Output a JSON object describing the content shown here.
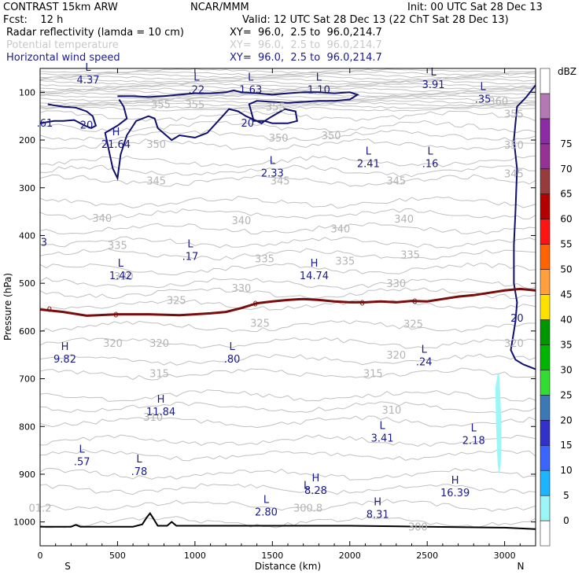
{
  "header": {
    "model": "CONTRAST 15km ARW",
    "center": "NCAR/MMM",
    "init": "Init: 00 UTC Sat 28 Dec 13",
    "fcst": "Fcst:    12 h",
    "valid": "Valid: 12 UTC Sat 28 Dec 13 (22 ChT Sat 28 Dec 13)",
    "field1": "Radar reflectivity (lamda = 10 cm)",
    "field1_xy": "XY=  96.0,  2.5 to  96.0,214.7",
    "field2": "Potential temperature",
    "field2_xy": "XY=  96.0,  2.5 to  96.0,214.7",
    "field3": "Horizontal wind speed",
    "field3_xy": "XY=  96.0,  2.5 to  96.0,214.7"
  },
  "colors": {
    "theta": "#c0c0c0",
    "wind": "#101070",
    "freezing": "#7a0c0c",
    "terrain": "#000000",
    "label": "#1a1a8c"
  },
  "chart_data": {
    "type": "contour",
    "xlabel": "Distance (km)",
    "ylabel": "Pressure (hPa)",
    "xlim": [
      0,
      3200
    ],
    "ylim": [
      1050,
      50
    ],
    "x_ticks": [
      "0",
      "500",
      "1000",
      "1500",
      "2000",
      "2500",
      "3000"
    ],
    "x_tick_values": [
      0,
      500,
      1000,
      1500,
      2000,
      2500,
      3000
    ],
    "y_ticks": [
      "100",
      "200",
      "300",
      "400",
      "500",
      "600",
      "700",
      "800",
      "900",
      "1000"
    ],
    "y_tick_values": [
      100,
      200,
      300,
      400,
      500,
      600,
      700,
      800,
      900,
      1000
    ],
    "left_end": "S",
    "right_end": "N",
    "colorbar": {
      "title": "dBZ",
      "levels": [
        "0",
        "5",
        "10",
        "15",
        "20",
        "25",
        "30",
        "35",
        "40",
        "45",
        "50",
        "55",
        "60",
        "65",
        "70",
        "75"
      ],
      "colors": [
        "#ffffff",
        "#9cf6f6",
        "#1eb4ff",
        "#3c64ff",
        "#3232c8",
        "#3c78b4",
        "#32dc32",
        "#00b400",
        "#009600",
        "#ffe100",
        "#ffa03c",
        "#ff6400",
        "#ff1414",
        "#b40000",
        "#963c3c",
        "#963296",
        "#8c2ca4",
        "#b478b4",
        "#ffffff"
      ]
    },
    "theta_labels": [
      {
        "text": "355",
        "x": 780,
        "p": 125
      },
      {
        "text": "355",
        "x": 1000,
        "p": 125
      },
      {
        "text": "355",
        "x": 1520,
        "p": 130
      },
      {
        "text": "360",
        "x": 2960,
        "p": 118
      },
      {
        "text": "355",
        "x": 3060,
        "p": 145
      },
      {
        "text": "350",
        "x": 750,
        "p": 208
      },
      {
        "text": "350",
        "x": 1540,
        "p": 195
      },
      {
        "text": "350",
        "x": 1880,
        "p": 190
      },
      {
        "text": "350",
        "x": 3060,
        "p": 210
      },
      {
        "text": "345",
        "x": 750,
        "p": 285
      },
      {
        "text": "345",
        "x": 1550,
        "p": 285
      },
      {
        "text": "345",
        "x": 2300,
        "p": 285
      },
      {
        "text": "345",
        "x": 3060,
        "p": 270
      },
      {
        "text": "340",
        "x": 400,
        "p": 363
      },
      {
        "text": "340",
        "x": 1300,
        "p": 368
      },
      {
        "text": "340",
        "x": 1940,
        "p": 385
      },
      {
        "text": "340",
        "x": 2350,
        "p": 365
      },
      {
        "text": "335",
        "x": 500,
        "p": 420
      },
      {
        "text": "335",
        "x": 1450,
        "p": 448
      },
      {
        "text": "335",
        "x": 1970,
        "p": 453
      },
      {
        "text": "335",
        "x": 2390,
        "p": 440
      },
      {
        "text": "330",
        "x": 540,
        "p": 485
      },
      {
        "text": "330",
        "x": 1300,
        "p": 510
      },
      {
        "text": "330",
        "x": 2300,
        "p": 500
      },
      {
        "text": "325",
        "x": 880,
        "p": 535
      },
      {
        "text": "325",
        "x": 1420,
        "p": 583
      },
      {
        "text": "325",
        "x": 2410,
        "p": 585
      },
      {
        "text": "320",
        "x": 470,
        "p": 625
      },
      {
        "text": "320",
        "x": 770,
        "p": 625
      },
      {
        "text": "320",
        "x": 2300,
        "p": 650
      },
      {
        "text": "320",
        "x": 3060,
        "p": 625
      },
      {
        "text": "315",
        "x": 770,
        "p": 688
      },
      {
        "text": "315",
        "x": 2150,
        "p": 688
      },
      {
        "text": "310",
        "x": 730,
        "p": 780
      },
      {
        "text": "310",
        "x": 2270,
        "p": 765
      },
      {
        "text": "300.8",
        "x": 1730,
        "p": 970
      },
      {
        "text": "300",
        "x": 2440,
        "p": 1010
      },
      {
        "text": "01.2",
        "x": 0,
        "p": 970
      }
    ],
    "wind_labels": [
      {
        "text": "20",
        "x": 300,
        "p": 168
      },
      {
        "text": "20",
        "x": 1340,
        "p": 164
      },
      {
        "text": "20",
        "x": 3080,
        "p": 572
      }
    ],
    "extrema": [
      {
        "letter": "L",
        "value": "4.37",
        "x": 310,
        "p": 70
      },
      {
        "letter": "L",
        "value": ".22",
        "x": 1010,
        "p": 90
      },
      {
        "letter": "L",
        "value": "1.63",
        "x": 1360,
        "p": 90
      },
      {
        "letter": "L",
        "value": "1.10",
        "x": 1800,
        "p": 90
      },
      {
        "letter": "L",
        "value": "3.91",
        "x": 2540,
        "p": 80
      },
      {
        "letter": "L",
        "value": ".35",
        "x": 2860,
        "p": 110
      },
      {
        "letter": "",
        "value": ".61",
        "x": 30,
        "p": 160
      },
      {
        "letter": "H",
        "value": "21.64",
        "x": 490,
        "p": 205
      },
      {
        "letter": "L",
        "value": "2.33",
        "x": 1500,
        "p": 265
      },
      {
        "letter": "L",
        "value": "2.41",
        "x": 2120,
        "p": 245
      },
      {
        "letter": "L",
        "value": ".16",
        "x": 2520,
        "p": 245
      },
      {
        "letter": "",
        "value": "3",
        "x": 25,
        "p": 410
      },
      {
        "letter": "L",
        "value": ".17",
        "x": 970,
        "p": 440
      },
      {
        "letter": "L",
        "value": "1.42",
        "x": 520,
        "p": 480
      },
      {
        "letter": "H",
        "value": "14.74",
        "x": 1770,
        "p": 480
      },
      {
        "letter": "H",
        "value": "9.82",
        "x": 160,
        "p": 655
      },
      {
        "letter": "L",
        "value": ".80",
        "x": 1240,
        "p": 655
      },
      {
        "letter": "L",
        "value": ".24",
        "x": 2480,
        "p": 660
      },
      {
        "letter": "H",
        "value": "11.84",
        "x": 780,
        "p": 765
      },
      {
        "letter": "L",
        "value": "3.41",
        "x": 2210,
        "p": 820
      },
      {
        "letter": "L",
        "value": "2.18",
        "x": 2800,
        "p": 825
      },
      {
        "letter": "L",
        "value": ".57",
        "x": 270,
        "p": 870
      },
      {
        "letter": "L",
        "value": ".78",
        "x": 640,
        "p": 890
      },
      {
        "letter": "H",
        "value": "8.28",
        "x": 1780,
        "p": 930
      },
      {
        "letter": "H",
        "value": "16.39",
        "x": 2680,
        "p": 935
      },
      {
        "letter": "L",
        "value": "2.80",
        "x": 1460,
        "p": 975
      },
      {
        "letter": "L",
        "value": "",
        "x": 1720,
        "p": 945
      },
      {
        "letter": "H",
        "value": "8.31",
        "x": 2180,
        "p": 980
      }
    ],
    "freezing_level_label": "0",
    "freezing_level": {
      "x": [
        0,
        150,
        300,
        500,
        700,
        900,
        1000,
        1100,
        1200,
        1300,
        1400,
        1500,
        1600,
        1700,
        1800,
        1900,
        2000,
        2100,
        2200,
        2300,
        2400,
        2500,
        2600,
        2700,
        2800,
        2900,
        3000,
        3100,
        3200
      ],
      "p": [
        555,
        560,
        568,
        565,
        565,
        567,
        565,
        563,
        560,
        552,
        542,
        538,
        535,
        533,
        535,
        538,
        540,
        540,
        538,
        540,
        537,
        538,
        533,
        528,
        525,
        520,
        515,
        512,
        515
      ]
    },
    "terrain": {
      "x": [
        0,
        200,
        230,
        260,
        600,
        660,
        690,
        710,
        730,
        760,
        820,
        850,
        880,
        1000,
        1500,
        2000,
        2500,
        3000,
        3200
      ],
      "p": [
        1010,
        1010,
        1006,
        1010,
        1010,
        1005,
        990,
        982,
        992,
        1008,
        1008,
        1000,
        1008,
        1008,
        1008,
        1008,
        1010,
        1012,
        1015
      ]
    },
    "reflectivity": {
      "level": "5-10 dBZ",
      "x": [
        2955,
        2965,
        2975,
        2980,
        2975,
        2965,
        2955,
        2945,
        2940
      ],
      "p": [
        690,
        690,
        760,
        820,
        880,
        900,
        880,
        800,
        720
      ]
    }
  }
}
